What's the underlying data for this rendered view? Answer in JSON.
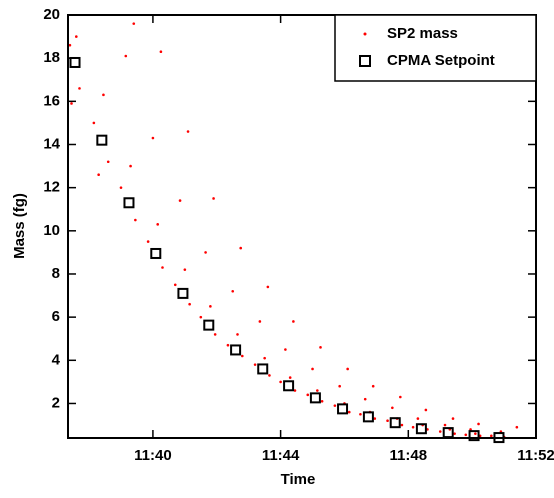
{
  "chart_data": {
    "type": "scatter",
    "x_label": "Time",
    "y_label": "Mass (fg)",
    "xlim": [
      37.34,
      52
    ],
    "ylim": [
      0.4,
      20
    ],
    "xticks": [
      {
        "value": 40,
        "label": "11:40"
      },
      {
        "value": 44,
        "label": "11:44"
      },
      {
        "value": 48,
        "label": "11:48"
      },
      {
        "value": 52,
        "label": "11:52"
      }
    ],
    "yticks": [
      2,
      4,
      6,
      8,
      10,
      12,
      14,
      16,
      18,
      20
    ],
    "legend": "upper right",
    "series": [
      {
        "name": "SP2 mass",
        "color": "#ff0000",
        "marker": "dot",
        "x": [
          37.4,
          37.7,
          37.6,
          37.45,
          38.15,
          38.6,
          38.45,
          38.3,
          39.0,
          39.45,
          39.3,
          39.15,
          39.4,
          39.85,
          40.3,
          40.15,
          40.0,
          40.25,
          40.7,
          41.15,
          41.0,
          40.85,
          41.1,
          41.5,
          41.95,
          41.8,
          41.65,
          41.9,
          42.35,
          42.8,
          42.65,
          42.5,
          42.75,
          43.2,
          43.65,
          43.5,
          43.35,
          43.6,
          44.0,
          44.45,
          44.3,
          44.15,
          44.4,
          44.85,
          45.3,
          45.15,
          45.0,
          45.25,
          45.7,
          46.15,
          46.0,
          45.85,
          46.1,
          46.5,
          46.95,
          46.8,
          46.65,
          46.9,
          47.35,
          47.8,
          47.65,
          47.5,
          47.75,
          48.15,
          48.6,
          48.45,
          48.3,
          48.55,
          49.0,
          49.45,
          49.3,
          49.15,
          49.4,
          49.8,
          50.25,
          50.1,
          49.95,
          50.2,
          50.6,
          51.0,
          50.9,
          51.4
        ],
        "values": [
          18.6,
          16.6,
          19.0,
          15.9,
          15.0,
          13.2,
          16.3,
          12.6,
          12.0,
          10.5,
          13.0,
          18.1,
          19.6,
          9.5,
          8.3,
          10.3,
          14.3,
          18.3,
          7.5,
          6.6,
          8.2,
          11.4,
          14.6,
          6.0,
          5.2,
          6.5,
          9.0,
          11.5,
          4.7,
          4.2,
          5.2,
          7.2,
          9.2,
          3.8,
          3.3,
          4.1,
          5.8,
          7.4,
          3.0,
          2.6,
          3.2,
          4.5,
          5.8,
          2.4,
          2.1,
          2.6,
          3.6,
          4.6,
          1.9,
          1.6,
          2.0,
          2.8,
          3.6,
          1.5,
          1.3,
          1.6,
          2.2,
          2.8,
          1.2,
          1.0,
          1.3,
          1.8,
          2.3,
          0.9,
          0.8,
          1.0,
          1.3,
          1.7,
          0.7,
          0.6,
          0.8,
          1.0,
          1.3,
          0.55,
          0.5,
          0.6,
          0.8,
          1.05,
          0.5,
          0.45,
          0.7,
          0.9
        ]
      },
      {
        "name": "CPMA Setpoint",
        "color": "#000000",
        "marker": "square",
        "x": [
          37.56,
          38.4,
          39.25,
          40.09,
          40.94,
          41.75,
          42.59,
          43.44,
          44.25,
          45.09,
          45.94,
          46.75,
          47.59,
          48.41,
          49.25,
          50.06,
          50.84
        ],
        "values": [
          17.8,
          14.2,
          11.3,
          8.95,
          7.1,
          5.63,
          4.48,
          3.6,
          2.82,
          2.26,
          1.75,
          1.38,
          1.11,
          0.83,
          0.65,
          0.51,
          0.42
        ]
      }
    ]
  }
}
